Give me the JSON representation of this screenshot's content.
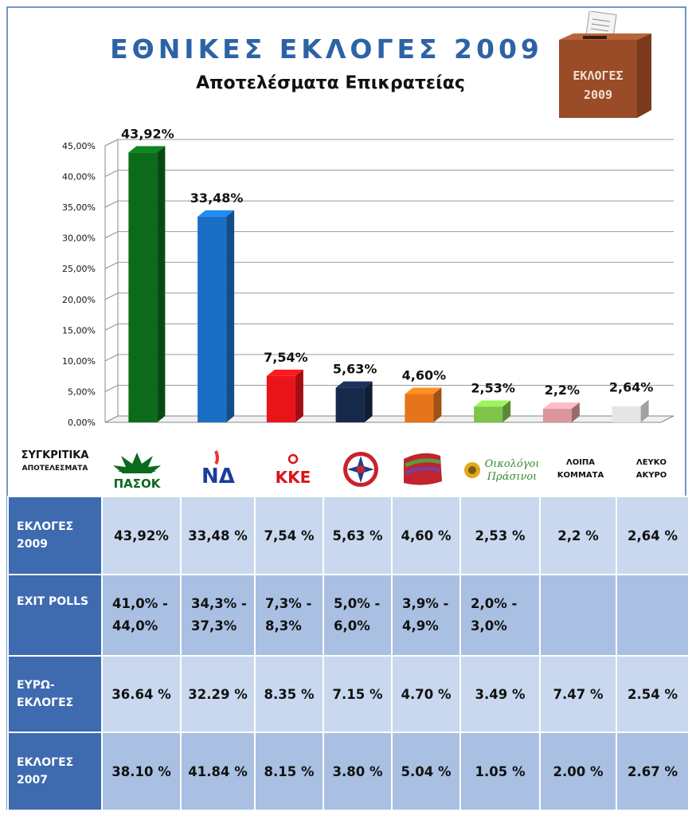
{
  "header": {
    "title": "ΕΘΝΙΚΕΣ  ΕΚΛΟΓΕΣ 2009",
    "subtitle": "Αποτελέσματα Επικρατείας",
    "ballot_line1": "ΕΚΛΟΓΕΣ",
    "ballot_line2": "2009"
  },
  "chart_data": {
    "type": "bar",
    "title": "ΕΘΝΙΚΕΣ  ΕΚΛΟΓΕΣ 2009",
    "subtitle": "Αποτελέσματα Επικρατείας",
    "categories": [
      "ΠΑΣΟΚ",
      "ΝΔ",
      "ΚΚΕ",
      "ΛΑΟΣ",
      "ΣΥΡΙΖΑ",
      "Οικολόγοι Πράσινοι",
      "ΛΟΙΠΑ ΚΟΜΜΑΤΑ",
      "ΛΕΥΚΟ ΑΚΥΡΟ"
    ],
    "values": [
      43.92,
      33.48,
      7.54,
      5.63,
      4.6,
      2.53,
      2.2,
      2.64
    ],
    "data_labels": [
      "43,92%",
      "33,48%",
      "7,54%",
      "5,63%",
      "4,60%",
      "2,53%",
      "2,2%",
      "2,64%"
    ],
    "colors": [
      "#0c6b1a",
      "#1a6fc4",
      "#e8141a",
      "#17294b",
      "#e5741b",
      "#7ec34a",
      "#d9979c",
      "#e6e6e6"
    ],
    "ylim": [
      0,
      45
    ],
    "yticks": [
      "0,00%",
      "5,00%",
      "10,00%",
      "15,00%",
      "20,00%",
      "25,00%",
      "30,00%",
      "35,00%",
      "40,00%",
      "45,00%"
    ],
    "grid": true,
    "legend": "none"
  },
  "logos": {
    "label_line1": "ΣΥΓΚΡΙΤΙΚΑ",
    "label_line2": "ΑΠΟΤΕΛΕΣΜΑΤΑ",
    "pasok": "ΠΑΣΟΚ",
    "nd": "ΝΔ",
    "kke": "ΚΚΕ",
    "oikologoi_1": "Οικολόγοι",
    "oikologoi_2": "Πράσινοι",
    "loipa_1": "ΛΟΙΠΑ",
    "loipa_2": "ΚΟΜΜΑΤΑ",
    "lefko_1": "ΛΕΥΚΟ",
    "lefko_2": "ΑΚΥΡΟ"
  },
  "table": {
    "rows": [
      {
        "label": "ΕΚΛΟΓΕΣ 2009",
        "values": [
          "43,92%",
          "33,48 %",
          "7,54 %",
          "5,63 %",
          "4,60 %",
          "2,53 %",
          "2,2 %",
          "2,64 %"
        ]
      },
      {
        "label": "EXIT POLLS",
        "values": [
          "41,0% - 44,0%",
          "34,3% - 37,3%",
          "7,3% - 8,3%",
          "5,0% - 6,0%",
          "3,9% - 4,9%",
          "2,0% - 3,0%",
          "",
          ""
        ]
      },
      {
        "label": "ΕΥΡΩ- ΕΚΛΟΓΕΣ",
        "values": [
          "36.64 %",
          "32.29 %",
          "8.35 %",
          "7.15 %",
          "4.70 %",
          "3.49 %",
          "7.47 %",
          "2.54 %"
        ]
      },
      {
        "label": "ΕΚΛΟΓΕΣ 2007",
        "values": [
          "38.10 %",
          "41.84 %",
          "8.15 %",
          "3.80 %",
          "5.04 %",
          "1.05 %",
          "2.00 %",
          "2.67 %"
        ]
      }
    ]
  }
}
